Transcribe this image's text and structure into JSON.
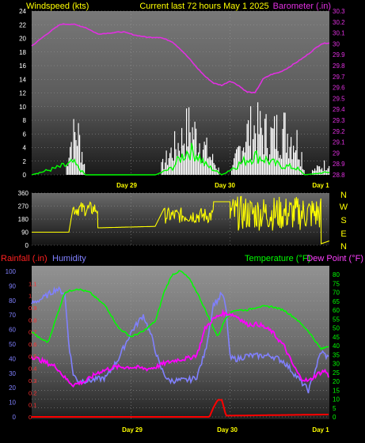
{
  "header": {
    "left": "Windspeed (kts)",
    "center": "Current last 72 hours May 1 2025",
    "right": "Barometer (.in)"
  },
  "colors": {
    "yellow": "#ffff00",
    "magenta": "#e030e0",
    "white": "#ffffff",
    "green": "#00ff00",
    "red": "#ff0000",
    "blue": "#7f7fff",
    "humidity": "#8080ff",
    "rain": "#ff0000",
    "temp": "#00ff00",
    "dew": "#ff00ff"
  },
  "x_labels": [
    "Day 29",
    "Day 30",
    "Day 1"
  ],
  "direction_labels": [
    "N",
    "W",
    "S",
    "E",
    "N"
  ],
  "bottom_header": {
    "rain": "Rainfall (.in)",
    "humidity": "Humidity",
    "temp": "Temperature (°F)",
    "dew": "Dew Point (°F)"
  },
  "chart_data": [
    {
      "type": "line",
      "name_left": "Windspeed (kts)",
      "name_right": "Barometer (.in)",
      "x_range_hours": [
        0,
        72
      ],
      "wind_axis": {
        "min": 0,
        "max": 24,
        "ticks": [
          "0",
          "2",
          "4",
          "6",
          "8",
          "10",
          "12",
          "14",
          "16",
          "18",
          "20",
          "22",
          "24"
        ]
      },
      "baro_axis": {
        "min": 28.8,
        "max": 30.3,
        "ticks": [
          "28.8",
          "28.9",
          "29",
          "29.1",
          "29.2",
          "29.3",
          "29.4",
          "29.5",
          "29.6",
          "29.7",
          "29.8",
          "29.9",
          "30",
          "30.1",
          "30.2",
          "30.3"
        ]
      },
      "barometer": {
        "x": [
          0,
          4,
          7,
          10,
          13,
          16,
          19,
          22,
          25,
          28,
          31,
          34,
          36,
          38,
          40,
          42,
          44,
          46,
          48,
          50,
          52,
          54,
          56,
          58,
          60,
          62,
          64,
          66,
          68,
          70,
          72
        ],
        "y": [
          29.98,
          30.1,
          30.18,
          30.18,
          30.15,
          30.09,
          30.1,
          30.11,
          30.08,
          30.06,
          30.06,
          30.02,
          29.95,
          29.87,
          29.78,
          29.7,
          29.64,
          29.62,
          29.66,
          29.62,
          29.56,
          29.55,
          29.68,
          29.72,
          29.74,
          29.78,
          29.83,
          29.88,
          29.94,
          30.0,
          30.01
        ]
      },
      "wind_gust_envelope": {
        "x": [
          8,
          9,
          10,
          11,
          12,
          13,
          30,
          32,
          34,
          36,
          37,
          38,
          40,
          42,
          46,
          48,
          50,
          52,
          54,
          56,
          58,
          60,
          62,
          64,
          65,
          66,
          72
        ],
        "y": [
          0,
          7,
          9,
          10,
          6,
          0,
          0,
          3,
          6,
          8,
          10,
          11,
          9,
          6,
          0,
          0,
          6,
          10,
          11,
          10,
          9,
          11,
          10,
          8,
          6,
          0,
          3
        ]
      },
      "wind_average": {
        "x": [
          0,
          9,
          10,
          11,
          12,
          13,
          30,
          34,
          36,
          38,
          40,
          42,
          46,
          50,
          52,
          54,
          56,
          58,
          60,
          64,
          66,
          72
        ],
        "y": [
          0,
          1.5,
          1.8,
          1.2,
          0.6,
          0,
          0,
          1,
          2.5,
          3.6,
          3,
          1.5,
          0,
          1.5,
          2.2,
          2.8,
          2.4,
          1.8,
          1.4,
          1,
          0,
          0.4
        ]
      }
    },
    {
      "type": "scatter",
      "name": "Wind direction",
      "x_range_hours": [
        0,
        72
      ],
      "y_axis": {
        "min": 0,
        "max": 360,
        "ticks": [
          "0",
          "90",
          "180",
          "270",
          "360"
        ]
      },
      "segments": [
        {
          "x": [
            0,
            9
          ],
          "y": [
            90,
            90
          ]
        },
        {
          "x": [
            10,
            16
          ],
          "y": [
            200,
            300
          ]
        },
        {
          "x": [
            16,
            30
          ],
          "y": [
            120,
            130
          ]
        },
        {
          "x": [
            32,
            44
          ],
          "y": [
            150,
            260
          ]
        },
        {
          "x": [
            44,
            48
          ],
          "y": [
            300,
            300
          ]
        },
        {
          "x": [
            48,
            70
          ],
          "y": [
            100,
            340
          ]
        },
        {
          "x": [
            70,
            72
          ],
          "y": [
            10,
            30
          ]
        }
      ]
    },
    {
      "type": "line",
      "name_left": "Rainfall (.in)",
      "name_left2": "Humidity",
      "name_right": "Temperature (°F)",
      "name_right2": "Dew Point (°F)",
      "x_range_hours": [
        0,
        72
      ],
      "humidity_axis": {
        "min": 0,
        "max": 100,
        "ticks": [
          "0",
          "10",
          "20",
          "30",
          "40",
          "50",
          "60",
          "70",
          "80",
          "90",
          "100"
        ]
      },
      "rain_axis": {
        "min": 0,
        "max": 1.2,
        "ticks": [
          "0",
          "0.1",
          "0.2",
          "0.3",
          "0.4",
          "0.5",
          "0.6",
          "0.7",
          "0.8",
          "0.9",
          "1",
          "1.1"
        ]
      },
      "temp_axis": {
        "min": 0,
        "max": 80,
        "ticks": [
          "0",
          "5",
          "10",
          "15",
          "20",
          "25",
          "30",
          "35",
          "40",
          "45",
          "50",
          "55",
          "60",
          "65",
          "70",
          "75",
          "80"
        ]
      },
      "humidity": {
        "x": [
          0,
          3,
          6,
          8,
          9,
          10,
          11,
          12,
          14,
          18,
          21,
          24,
          27,
          29,
          31,
          33,
          35,
          37,
          39,
          40,
          42,
          44,
          45,
          46,
          47,
          48,
          50,
          52,
          55,
          58,
          61,
          64,
          67,
          70,
          72
        ],
        "y": [
          78,
          82,
          88,
          85,
          50,
          30,
          25,
          25,
          25,
          27,
          40,
          58,
          70,
          55,
          35,
          25,
          25,
          25,
          26,
          28,
          45,
          78,
          80,
          85,
          75,
          40,
          40,
          42,
          42,
          42,
          38,
          28,
          18,
          45,
          40
        ]
      },
      "temperature": {
        "x": [
          0,
          2,
          4,
          8,
          11,
          14,
          18,
          21,
          24,
          27,
          30,
          32,
          34,
          36,
          38,
          40,
          43,
          45,
          47,
          49,
          52,
          55,
          58,
          61,
          64,
          67,
          70,
          72
        ],
        "y": [
          48,
          44,
          42,
          70,
          72,
          70,
          62,
          50,
          45,
          48,
          54,
          70,
          80,
          82,
          78,
          70,
          55,
          45,
          56,
          60,
          60,
          62,
          62,
          60,
          55,
          48,
          38,
          40
        ]
      },
      "dew_point": {
        "x": [
          0,
          4,
          6,
          8,
          9,
          10,
          13,
          16,
          20,
          24,
          28,
          30,
          32,
          35,
          38,
          40,
          42,
          44,
          46,
          48,
          50,
          52,
          55,
          58,
          61,
          63,
          65,
          67,
          69,
          71,
          72
        ],
        "y": [
          34,
          30,
          28,
          22,
          20,
          18,
          20,
          25,
          28,
          28,
          27,
          28,
          30,
          32,
          33,
          35,
          50,
          55,
          58,
          58,
          56,
          52,
          52,
          48,
          40,
          30,
          22,
          20,
          24,
          26,
          22
        ]
      },
      "rain": {
        "x": [
          0,
          43,
          44,
          45,
          46,
          47,
          72
        ],
        "y": [
          0,
          0,
          0.08,
          0.14,
          0.14,
          0.01,
          0.02
        ]
      }
    }
  ]
}
